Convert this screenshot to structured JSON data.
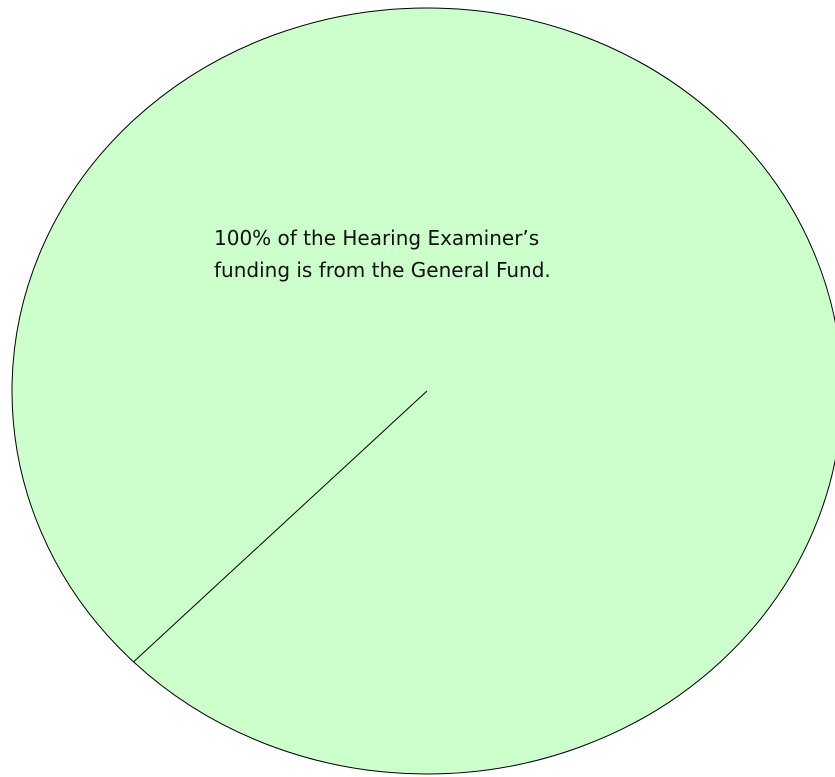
{
  "chart_data": {
    "type": "pie",
    "title": "",
    "slices": [
      {
        "label": "General Fund",
        "value": 100,
        "color": "#ccffcc"
      }
    ],
    "annotation": {
      "lines": [
        "100% of the Hearing Examiner’s",
        "funding is from the General Fund."
      ]
    },
    "style": {
      "outline_color": "#000000",
      "text_color": "#111111"
    }
  }
}
